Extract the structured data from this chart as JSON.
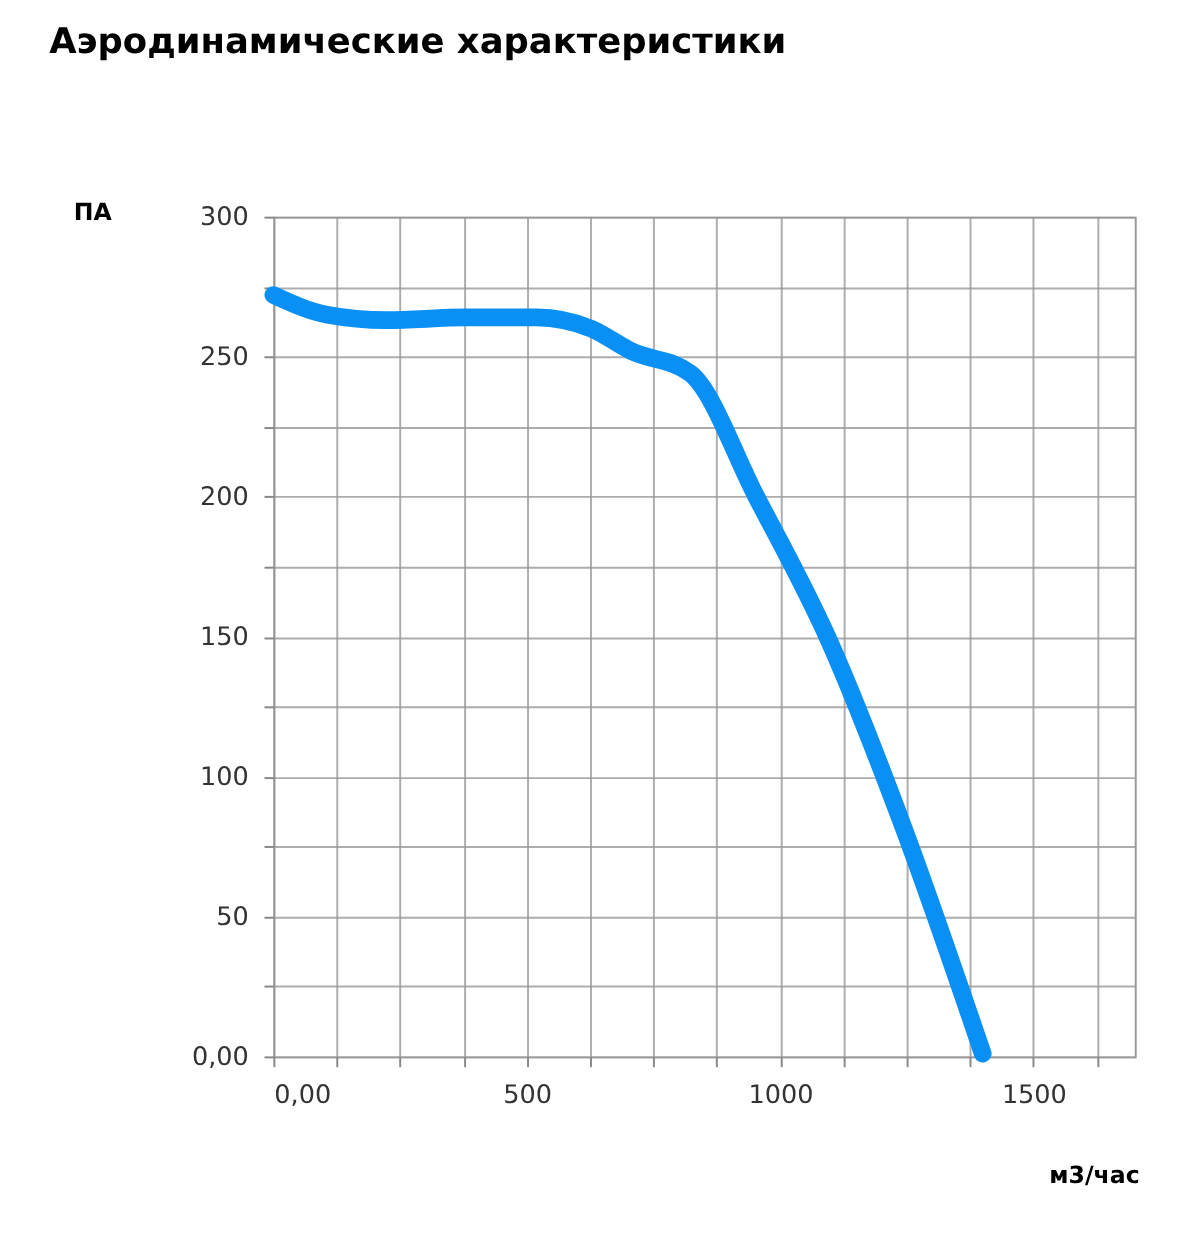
{
  "chart_data": {
    "type": "line",
    "title": "Аэродинамические характеристики",
    "xlabel": "м3/час",
    "ylabel": "ПА",
    "x": [
      0,
      105,
      223,
      380,
      520,
      627,
      706,
      823,
      953,
      1098,
      1239,
      1400
    ],
    "series": [
      {
        "color": "#0a8ff5",
        "values": [
          272,
          265,
          263,
          264,
          264,
          260,
          252,
          244,
          200,
          148,
          84,
          1
        ]
      }
    ],
    "xlim": [
      0,
      1700
    ],
    "xticks": [
      {
        "value": 0,
        "label": "0,00"
      },
      {
        "value": 125,
        "label": null
      },
      {
        "value": 250,
        "label": null
      },
      {
        "value": 375,
        "label": null
      },
      500,
      {
        "value": 625,
        "label": null
      },
      {
        "value": 750,
        "label": null
      },
      {
        "value": 875,
        "label": null
      },
      1000,
      {
        "value": 1125,
        "label": null
      },
      {
        "value": 1250,
        "label": null
      },
      {
        "value": 1375,
        "label": null
      },
      1500,
      {
        "value": 1625,
        "label": null
      }
    ],
    "ylim": [
      0,
      300
    ],
    "yticks": [
      {
        "value": 0,
        "label": "0,00"
      },
      {
        "value": 25,
        "label": null
      },
      50,
      {
        "value": 75,
        "label": null
      },
      100,
      {
        "value": 125,
        "label": null
      },
      150,
      {
        "value": 175,
        "label": null
      },
      200,
      {
        "value": 225,
        "label": null
      },
      250,
      {
        "value": 275,
        "label": null
      },
      300
    ],
    "grid": true,
    "line_style": "solid"
  }
}
